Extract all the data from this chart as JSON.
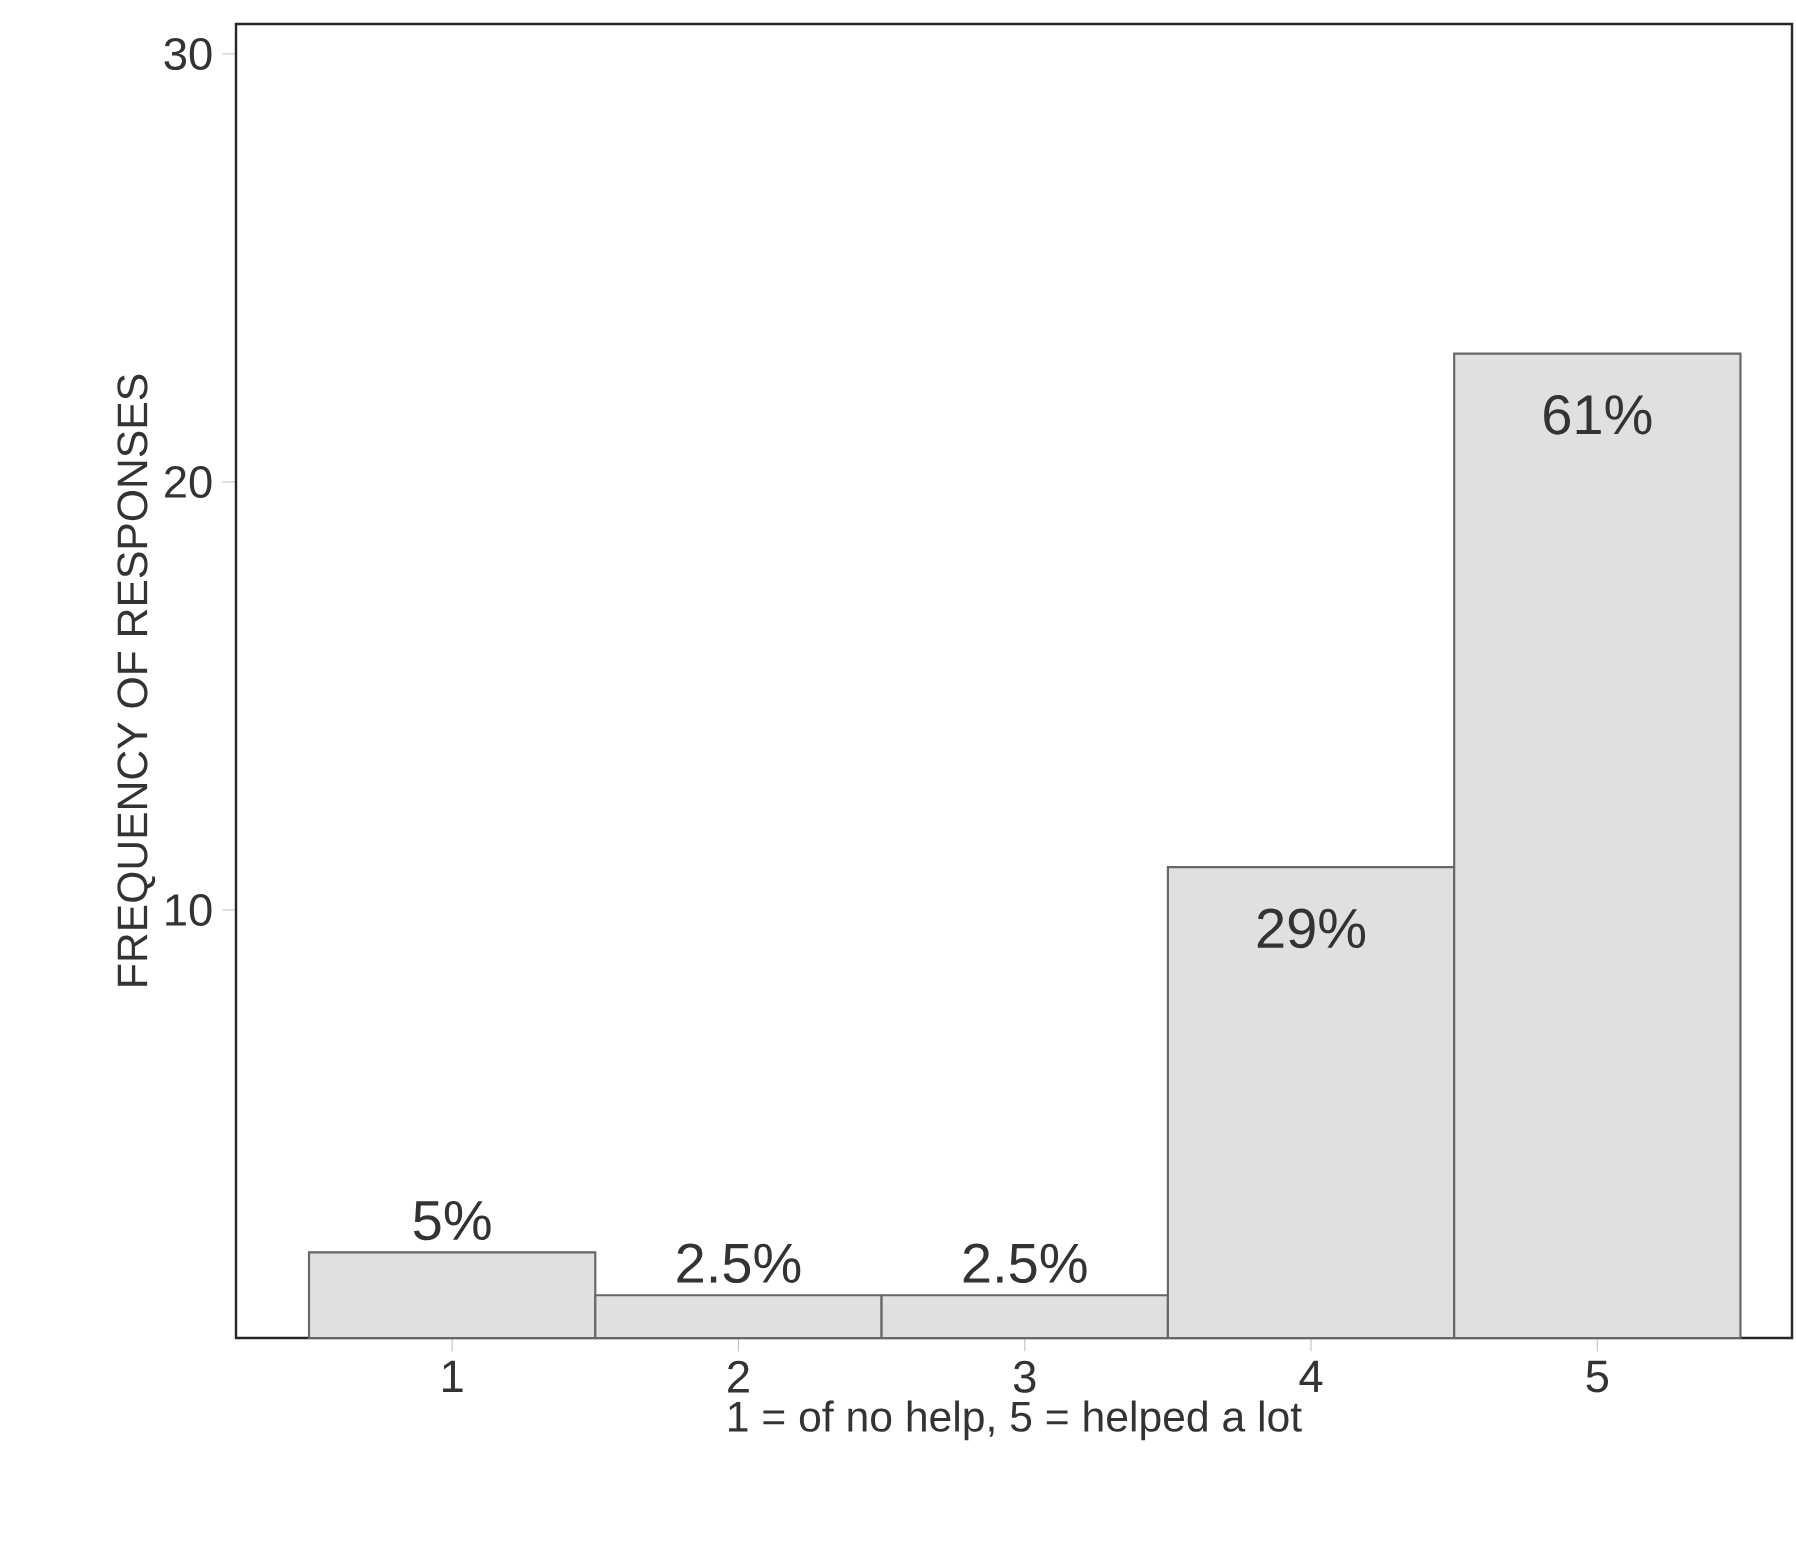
{
  "chart_data": {
    "type": "bar",
    "categories": [
      "1",
      "2",
      "3",
      "4",
      "5"
    ],
    "values": [
      2,
      1,
      1,
      11,
      23
    ],
    "annotations": [
      {
        "text": "5%",
        "x": "1",
        "y": 2
      },
      {
        "text": "2.5%",
        "x": "2",
        "y": 1
      },
      {
        "text": "2.5%",
        "x": "3",
        "y": 1
      },
      {
        "text": "29%",
        "x": "4",
        "y": 11
      },
      {
        "text": "61%",
        "x": "5",
        "y": 23
      }
    ],
    "color": "#e0e0e0",
    "ylim": [
      0,
      30.7
    ],
    "yticks": [
      10,
      20,
      30
    ],
    "xlabel": "1 = of no help, 5 = helped a lot",
    "ylabel": "FREQUENCY OF RESPONSES"
  }
}
